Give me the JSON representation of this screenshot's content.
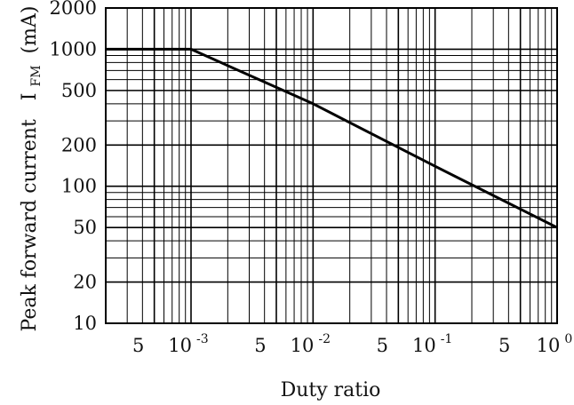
{
  "chart_data": {
    "type": "line",
    "xscale": "log",
    "yscale": "log",
    "xlim": [
      0.0002,
      1
    ],
    "ylim": [
      10,
      2000
    ],
    "xlabel": "Duty ratio",
    "ylabel_prefix": "Peak forward current",
    "ylabel_symbol": "I",
    "ylabel_subscript": "FM",
    "ylabel_unit": "(mA)",
    "grid": true,
    "x_ticks": [
      {
        "value": 0.0005,
        "label": "5"
      },
      {
        "value": 0.001,
        "base": "10",
        "exp": "-3"
      },
      {
        "value": 0.005,
        "label": "5"
      },
      {
        "value": 0.01,
        "base": "10",
        "exp": "-2"
      },
      {
        "value": 0.05,
        "label": "5"
      },
      {
        "value": 0.1,
        "base": "10",
        "exp": "-1"
      },
      {
        "value": 0.5,
        "label": "5"
      },
      {
        "value": 1,
        "base": "10",
        "exp": "0"
      }
    ],
    "y_ticks": [
      {
        "value": 10,
        "label": "10"
      },
      {
        "value": 20,
        "label": "20"
      },
      {
        "value": 50,
        "label": "50"
      },
      {
        "value": 100,
        "label": "100"
      },
      {
        "value": 200,
        "label": "200"
      },
      {
        "value": 500,
        "label": "500"
      },
      {
        "value": 1000,
        "label": "1000"
      },
      {
        "value": 2000,
        "label": "2000"
      }
    ],
    "series": [
      {
        "color": "#000000",
        "x": [
          0.0002,
          0.001,
          0.01,
          0.1,
          1
        ],
        "y": [
          1000,
          1000,
          400,
          140,
          50
        ]
      }
    ]
  }
}
